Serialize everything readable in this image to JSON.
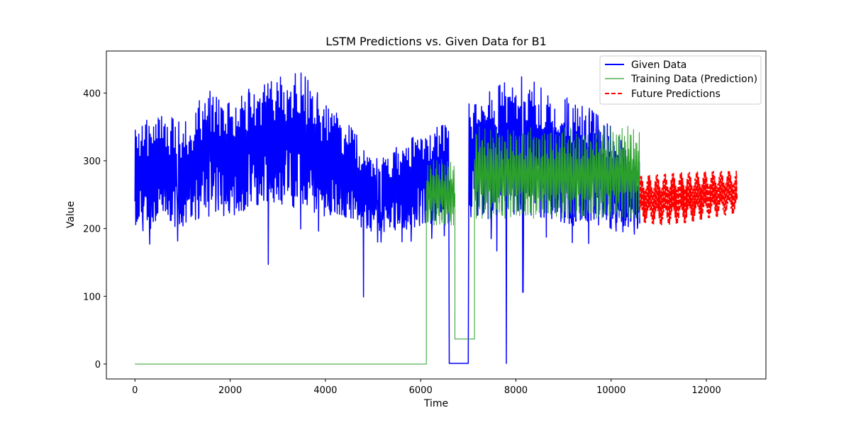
{
  "chart_data": {
    "type": "line",
    "title": "LSTM Predictions vs. Given Data for B1",
    "xlabel": "Time",
    "ylabel": "Value",
    "xlim": [
      -600,
      13250
    ],
    "ylim": [
      -22,
      462
    ],
    "xticks": [
      0,
      2000,
      4000,
      6000,
      8000,
      10000,
      12000
    ],
    "yticks": [
      0,
      100,
      200,
      300,
      400
    ],
    "grid": false,
    "legend_position": "top-right",
    "series": [
      {
        "name": "Given Data",
        "color": "#0000ff",
        "style": "solid",
        "envelope": [
          {
            "x": 0,
            "low": 172,
            "high": 345
          },
          {
            "x": 500,
            "low": 180,
            "high": 375
          },
          {
            "x": 1000,
            "low": 182,
            "high": 355
          },
          {
            "x": 1500,
            "low": 192,
            "high": 405
          },
          {
            "x": 2000,
            "low": 195,
            "high": 390
          },
          {
            "x": 2500,
            "low": 205,
            "high": 410
          },
          {
            "x": 3000,
            "low": 210,
            "high": 425
          },
          {
            "x": 3400,
            "low": 200,
            "high": 440
          },
          {
            "x": 4000,
            "low": 195,
            "high": 385
          },
          {
            "x": 4500,
            "low": 188,
            "high": 355
          },
          {
            "x": 5000,
            "low": 180,
            "high": 300
          },
          {
            "x": 5500,
            "low": 180,
            "high": 320
          },
          {
            "x": 6000,
            "low": 182,
            "high": 345
          },
          {
            "x": 6550,
            "low": 190,
            "high": 355
          },
          {
            "x": 7000,
            "low": 185,
            "high": 390
          },
          {
            "x": 7500,
            "low": 185,
            "high": 410
          },
          {
            "x": 8000,
            "low": 192,
            "high": 425
          },
          {
            "x": 8500,
            "low": 190,
            "high": 420
          },
          {
            "x": 9000,
            "low": 180,
            "high": 395
          },
          {
            "x": 9500,
            "low": 178,
            "high": 380
          },
          {
            "x": 10000,
            "low": 175,
            "high": 350
          },
          {
            "x": 10600,
            "low": 172,
            "high": 300
          }
        ],
        "gaps": [
          {
            "x_start": 6600,
            "x_end": 7000,
            "value": 1
          }
        ],
        "spikes": [
          {
            "x": 2800,
            "value": 147
          },
          {
            "x": 4800,
            "value": 99
          },
          {
            "x": 7600,
            "value": 167
          },
          {
            "x": 7800,
            "value": 1
          },
          {
            "x": 8150,
            "value": 106
          }
        ]
      },
      {
        "name": "Training Data (Prediction)",
        "color": "#2ca02c",
        "style": "solid",
        "segments": [
          {
            "x_start": 0,
            "x_end": 6120,
            "value": 0
          },
          {
            "x_start": 6120,
            "x_end": 6720,
            "low": 205,
            "high": 312
          },
          {
            "x_start": 6720,
            "x_end": 7130,
            "value": 37
          },
          {
            "x_start": 7130,
            "x_end": 10600,
            "low": 215,
            "high": 357
          }
        ]
      },
      {
        "name": "Future Predictions",
        "color": "#ff0000",
        "style": "dashed",
        "envelope": [
          {
            "x": 10600,
            "low": 205,
            "high": 282
          },
          {
            "x": 11000,
            "low": 200,
            "high": 285
          },
          {
            "x": 11500,
            "low": 202,
            "high": 288
          },
          {
            "x": 12000,
            "low": 210,
            "high": 289
          },
          {
            "x": 12650,
            "low": 218,
            "high": 290
          }
        ]
      }
    ]
  }
}
